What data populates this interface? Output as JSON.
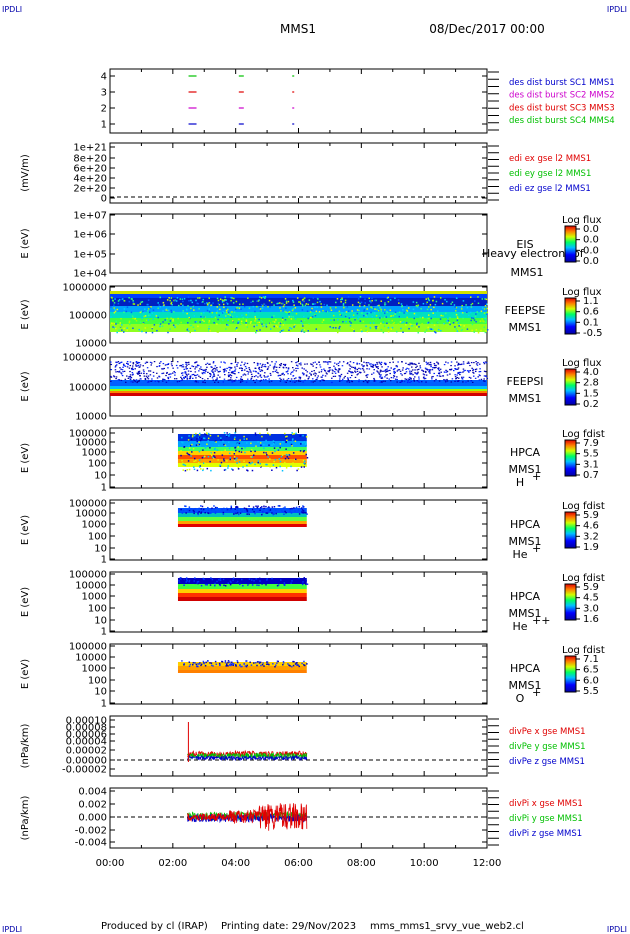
{
  "corner_label": "IPDLI",
  "header": {
    "title": "MMS1",
    "date": "08/Dec/2017 00:00"
  },
  "footer": {
    "producer": "Produced by cl (IRAP)",
    "printing": "Printing date: 29/Nov/2023",
    "script": "mms_mms1_srvy_vue_web2.cl"
  },
  "colors": {
    "red": "#e00000",
    "green": "#00c000",
    "blue": "#0000cc",
    "magenta": "#cc00cc",
    "dark": "#000000",
    "label_blue": "#000080"
  },
  "chart_data": [
    {
      "id": "burst",
      "type": "scatter",
      "ylabel": "",
      "y_ticks": [
        "4",
        "3",
        "2",
        "1"
      ],
      "xlim": [
        0,
        12
      ],
      "series": [
        {
          "name": "des dist burst SC1 MMS1",
          "y": 1,
          "color": "#0000cc",
          "x": [
            2.5,
            4.1,
            5.8
          ]
        },
        {
          "name": "des dist burst SC2 MMS2",
          "y": 2,
          "color": "#cc00cc",
          "x": [
            2.5,
            4.1,
            5.8
          ]
        },
        {
          "name": "des dist burst SC3 MMS3",
          "y": 3,
          "color": "#e00000",
          "x": [
            2.5,
            4.1,
            5.8
          ]
        },
        {
          "name": "des dist burst SC4 MMS4",
          "y": 4,
          "color": "#00c000",
          "x": [
            2.5,
            4.1,
            5.8
          ]
        }
      ]
    },
    {
      "id": "edi",
      "type": "line",
      "ylabel": "(mV/m)",
      "y_ticks": [
        "1e+21",
        "8e+20",
        "6e+20",
        "4e+20",
        "2e+20",
        "0"
      ],
      "series": [
        {
          "name": "edi ex gse l2 MMS1",
          "color": "#e00000"
        },
        {
          "name": "edi ey gse l2 MMS1",
          "color": "#00c000"
        },
        {
          "name": "edi ez gse l2 MMS1",
          "color": "#0000cc"
        }
      ]
    },
    {
      "id": "eis",
      "type": "heatmap",
      "ylabel": "E (eV)",
      "y_ticks": [
        "1e+07",
        "1e+06",
        "1e+05",
        "1e+04"
      ],
      "instrument": "EIS",
      "spacecraft": "MMS1",
      "overlay_text": "Heavy electron tof",
      "colorbar": {
        "label": "Log flux",
        "ticks": [
          "0.0",
          "0.0",
          "0.0",
          "0.0"
        ]
      }
    },
    {
      "id": "feepse",
      "type": "heatmap",
      "ylabel": "E (eV)",
      "y_ticks": [
        "1000000",
        "100000",
        "10000"
      ],
      "instrument": "FEEPSE",
      "spacecraft": "MMS1",
      "colorbar": {
        "label": "Log flux",
        "ticks": [
          "1.1",
          "0.6",
          "0.1",
          "-0.5"
        ]
      },
      "extent_hours": [
        0,
        12
      ]
    },
    {
      "id": "feepsi",
      "type": "heatmap",
      "ylabel": "E (eV)",
      "y_ticks": [
        "1000000",
        "100000",
        "10000"
      ],
      "instrument": "FEEPSI",
      "spacecraft": "MMS1",
      "colorbar": {
        "label": "Log flux",
        "ticks": [
          "4.0",
          "2.8",
          "1.5",
          "0.2"
        ]
      },
      "extent_hours": [
        0,
        12
      ]
    },
    {
      "id": "hpca_h",
      "type": "heatmap",
      "ylabel": "E (eV)",
      "y_ticks": [
        "100000",
        "10000",
        "1000",
        "100",
        "10",
        "1"
      ],
      "instrument": "HPCA",
      "spacecraft": "MMS1",
      "species": "H",
      "charge": "+",
      "colorbar": {
        "label": "Log fdist",
        "ticks": [
          "7.9",
          "5.5",
          "3.1",
          "0.7"
        ]
      },
      "extent_hours": [
        2.1,
        6.2
      ]
    },
    {
      "id": "hpca_he",
      "type": "heatmap",
      "ylabel": "E (eV)",
      "y_ticks": [
        "100000",
        "10000",
        "1000",
        "100",
        "10",
        "1"
      ],
      "instrument": "HPCA",
      "spacecraft": "MMS1",
      "species": "He",
      "charge": "+",
      "colorbar": {
        "label": "Log fdist",
        "ticks": [
          "5.9",
          "4.6",
          "3.2",
          "1.9"
        ]
      },
      "extent_hours": [
        2.1,
        6.2
      ]
    },
    {
      "id": "hpca_hepp",
      "type": "heatmap",
      "ylabel": "E (eV)",
      "y_ticks": [
        "100000",
        "10000",
        "1000",
        "100",
        "10",
        "1"
      ],
      "instrument": "HPCA",
      "spacecraft": "MMS1",
      "species": "He",
      "charge": "++",
      "colorbar": {
        "label": "Log fdist",
        "ticks": [
          "5.9",
          "4.5",
          "3.0",
          "1.6"
        ]
      },
      "extent_hours": [
        2.1,
        6.2
      ]
    },
    {
      "id": "hpca_o",
      "type": "heatmap",
      "ylabel": "E (eV)",
      "y_ticks": [
        "100000",
        "10000",
        "1000",
        "100",
        "10",
        "1"
      ],
      "instrument": "HPCA",
      "spacecraft": "MMS1",
      "species": "O",
      "charge": "+",
      "colorbar": {
        "label": "Log fdist",
        "ticks": [
          "7.1",
          "6.5",
          "6.0",
          "5.5"
        ]
      },
      "extent_hours": [
        2.1,
        6.2
      ]
    },
    {
      "id": "divpe",
      "type": "line",
      "ylabel": "(nPa/km)",
      "y_ticks": [
        "0.00010",
        "0.00008",
        "0.00006",
        "0.00004",
        "0.00002",
        "0.00000",
        "-0.00002"
      ],
      "ylim": [
        -2e-05,
        0.0001
      ],
      "series": [
        {
          "name": "divPe x gse MMS1",
          "color": "#e00000"
        },
        {
          "name": "divPe y gse MMS1",
          "color": "#00c000"
        },
        {
          "name": "divPe z gse MMS1",
          "color": "#0000cc"
        }
      ],
      "extent_hours": [
        2.4,
        6.2
      ]
    },
    {
      "id": "divpi",
      "type": "line",
      "ylabel": "(nPa/km)",
      "y_ticks": [
        "0.004",
        "0.002",
        "0.000",
        "-0.002",
        "-0.004"
      ],
      "ylim": [
        -0.005,
        0.005
      ],
      "series": [
        {
          "name": "divPi x gse MMS1",
          "color": "#e00000"
        },
        {
          "name": "divPi y gse MMS1",
          "color": "#00c000"
        },
        {
          "name": "divPi z gse MMS1",
          "color": "#0000cc"
        }
      ],
      "extent_hours": [
        2.4,
        6.2
      ]
    }
  ],
  "x_axis": {
    "ticks": [
      "00:00",
      "02:00",
      "04:00",
      "06:00",
      "08:00",
      "10:00",
      "12:00"
    ],
    "range_hours": [
      0,
      12
    ]
  }
}
